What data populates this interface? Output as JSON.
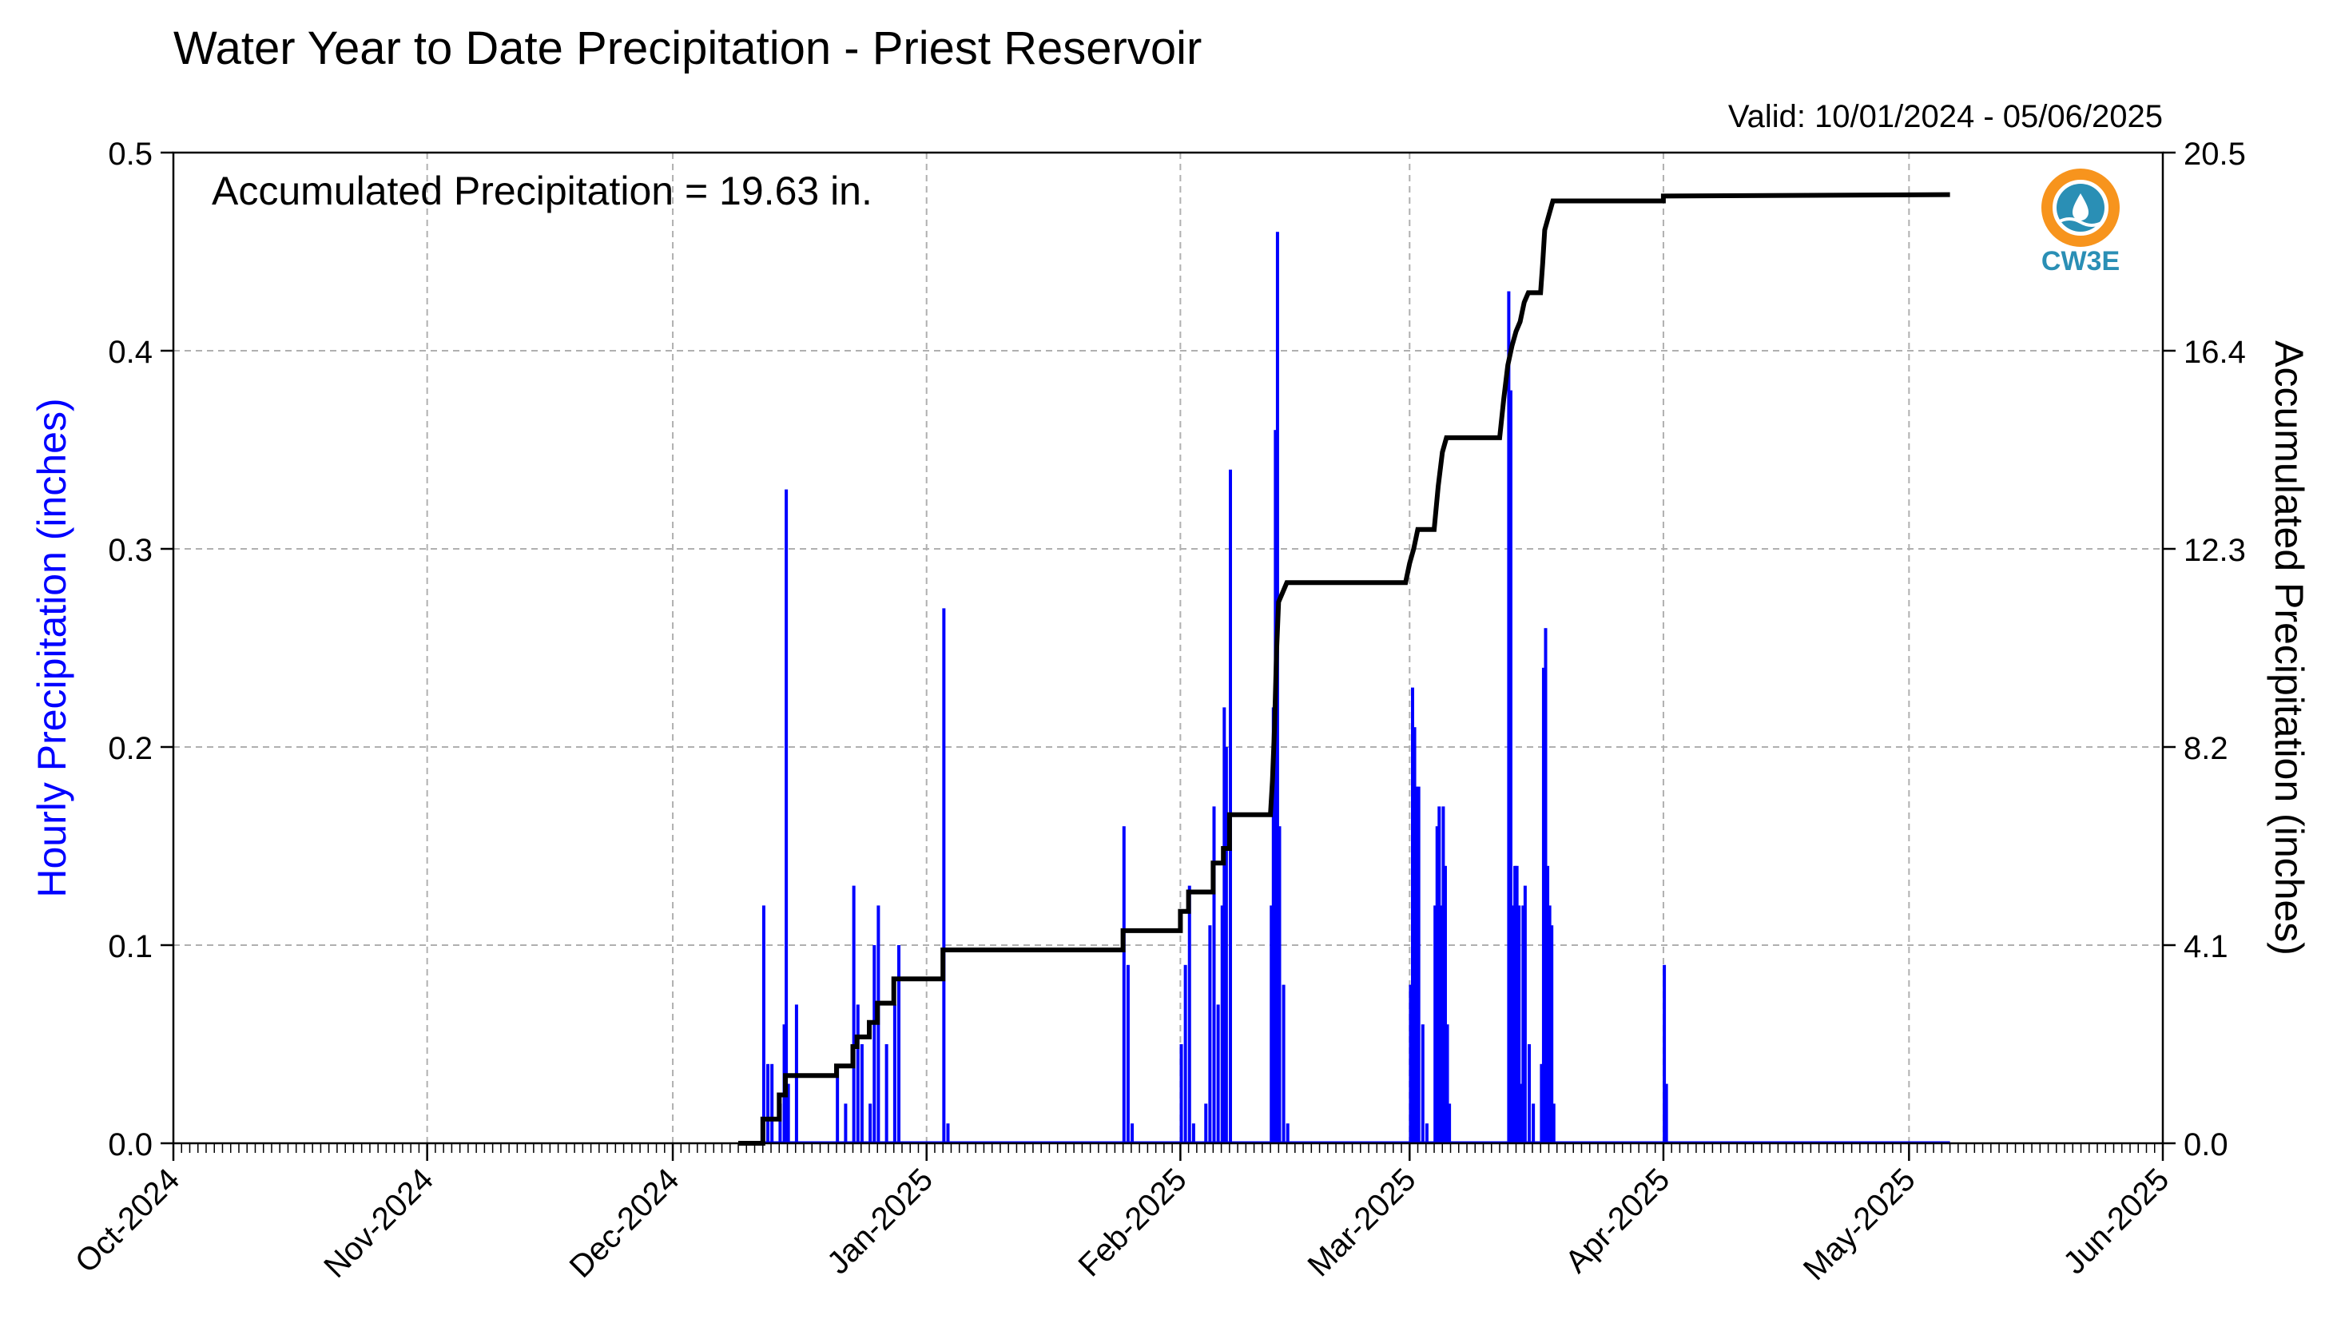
{
  "colors": {
    "hourly": "#0000ff",
    "accumulated": "#000000",
    "grid": "#b0b0b0",
    "logo_orange": "#f7941d",
    "logo_blue": "#2a8fb5"
  },
  "logo": {
    "text": "CW3E",
    "icon": "cw3e-water-drop-logo"
  },
  "chart_data": {
    "type": "bar",
    "title": "Water Year to Date Precipitation - Priest Reservoir",
    "subtitle": "Valid: 10/01/2024 - 05/06/2025",
    "annotation": "Accumulated Precipitation = 19.63 in.",
    "ylabel": "Hourly Precipitation (inches)",
    "y2label": "Accumulated Precipitation (inches)",
    "ylim": [
      0,
      0.5
    ],
    "y2lim": [
      0,
      20.5
    ],
    "xlim": [
      "2024-10-01",
      "2025-06-01"
    ],
    "yticks": [
      "0.0",
      "0.1",
      "0.2",
      "0.3",
      "0.4",
      "0.5"
    ],
    "y2ticks": [
      "0.0",
      "4.1",
      "8.2",
      "12.3",
      "16.4",
      "20.5"
    ],
    "xticks": [
      {
        "date": "2024-10-01",
        "label": "Oct-2024"
      },
      {
        "date": "2024-11-01",
        "label": "Nov-2024"
      },
      {
        "date": "2024-12-01",
        "label": "Dec-2024"
      },
      {
        "date": "2025-01-01",
        "label": "Jan-2025"
      },
      {
        "date": "2025-02-01",
        "label": "Feb-2025"
      },
      {
        "date": "2025-03-01",
        "label": "Mar-2025"
      },
      {
        "date": "2025-04-01",
        "label": "Apr-2025"
      },
      {
        "date": "2025-05-01",
        "label": "May-2025"
      },
      {
        "date": "2025-06-01",
        "label": "Jun-2025"
      }
    ],
    "grid": true,
    "series": [
      {
        "type": "bar",
        "axis": "left",
        "points": [
          [
            "2024-12-12",
            0.12
          ],
          [
            "2024-12-12T12",
            0.04
          ],
          [
            "2024-12-13",
            0.04
          ],
          [
            "2024-12-14",
            0.02
          ],
          [
            "2024-12-14T12",
            0.06
          ],
          [
            "2024-12-14T18",
            0.33
          ],
          [
            "2024-12-15",
            0.03
          ],
          [
            "2024-12-16",
            0.07
          ],
          [
            "2024-12-21",
            0.04
          ],
          [
            "2024-12-22",
            0.02
          ],
          [
            "2024-12-23",
            0.13
          ],
          [
            "2024-12-23T12",
            0.07
          ],
          [
            "2024-12-24",
            0.05
          ],
          [
            "2024-12-25",
            0.02
          ],
          [
            "2024-12-25T12",
            0.1
          ],
          [
            "2024-12-26",
            0.12
          ],
          [
            "2024-12-27",
            0.05
          ],
          [
            "2024-12-28",
            0.07
          ],
          [
            "2024-12-28T12",
            0.1
          ],
          [
            "2025-01-03",
            0.27
          ],
          [
            "2025-01-03T12",
            0.01
          ],
          [
            "2025-01-25",
            0.16
          ],
          [
            "2025-01-25T12",
            0.09
          ],
          [
            "2025-01-26",
            0.01
          ],
          [
            "2025-02-01",
            0.05
          ],
          [
            "2025-02-01T12",
            0.09
          ],
          [
            "2025-02-02",
            0.13
          ],
          [
            "2025-02-02T12",
            0.01
          ],
          [
            "2025-02-04",
            0.02
          ],
          [
            "2025-02-04T12",
            0.11
          ],
          [
            "2025-02-05",
            0.17
          ],
          [
            "2025-02-05T12",
            0.07
          ],
          [
            "2025-02-06",
            0.12
          ],
          [
            "2025-02-06T06",
            0.22
          ],
          [
            "2025-02-06T12",
            0.2
          ],
          [
            "2025-02-07",
            0.34
          ],
          [
            "2025-02-12",
            0.12
          ],
          [
            "2025-02-12T06",
            0.22
          ],
          [
            "2025-02-12T12",
            0.36
          ],
          [
            "2025-02-12T18",
            0.46
          ],
          [
            "2025-02-13",
            0.16
          ],
          [
            "2025-02-13T12",
            0.08
          ],
          [
            "2025-02-14",
            0.01
          ],
          [
            "2025-03-01",
            0.08
          ],
          [
            "2025-03-01T06",
            0.23
          ],
          [
            "2025-03-01T12",
            0.21
          ],
          [
            "2025-03-01T18",
            0.18
          ],
          [
            "2025-03-02",
            0.18
          ],
          [
            "2025-03-02T12",
            0.06
          ],
          [
            "2025-03-03",
            0.01
          ],
          [
            "2025-03-04",
            0.12
          ],
          [
            "2025-03-04T06",
            0.16
          ],
          [
            "2025-03-04T12",
            0.17
          ],
          [
            "2025-03-04T18",
            0.12
          ],
          [
            "2025-03-05",
            0.17
          ],
          [
            "2025-03-05T06",
            0.14
          ],
          [
            "2025-03-05T12",
            0.06
          ],
          [
            "2025-03-05T18",
            0.02
          ],
          [
            "2025-03-13",
            0.43
          ],
          [
            "2025-03-13T06",
            0.38
          ],
          [
            "2025-03-13T12",
            0.12
          ],
          [
            "2025-03-13T18",
            0.14
          ],
          [
            "2025-03-14",
            0.14
          ],
          [
            "2025-03-14T06",
            0.12
          ],
          [
            "2025-03-14T12",
            0.03
          ],
          [
            "2025-03-14T18",
            0.12
          ],
          [
            "2025-03-15",
            0.13
          ],
          [
            "2025-03-15T12",
            0.05
          ],
          [
            "2025-03-16",
            0.02
          ],
          [
            "2025-03-17",
            0.04
          ],
          [
            "2025-03-17T06",
            0.24
          ],
          [
            "2025-03-17T12",
            0.26
          ],
          [
            "2025-03-17T18",
            0.14
          ],
          [
            "2025-03-18",
            0.12
          ],
          [
            "2025-03-18T06",
            0.11
          ],
          [
            "2025-03-18T12",
            0.02
          ],
          [
            "2025-04-01",
            0.09
          ],
          [
            "2025-04-01T06",
            0.03
          ]
        ]
      },
      {
        "type": "line",
        "axis": "right",
        "points": [
          [
            "2024-12-09",
            0.0
          ],
          [
            "2024-12-12",
            0.0
          ],
          [
            "2024-12-12",
            0.5
          ],
          [
            "2024-12-14",
            0.5
          ],
          [
            "2024-12-14",
            1.0
          ],
          [
            "2024-12-14T18",
            1.0
          ],
          [
            "2024-12-14T18",
            1.4
          ],
          [
            "2024-12-16",
            1.4
          ],
          [
            "2024-12-16",
            1.4
          ],
          [
            "2024-12-16T12",
            1.4
          ],
          [
            "2024-12-16T12",
            1.4
          ],
          [
            "2024-12-17",
            1.4
          ],
          [
            "2024-12-17",
            1.4
          ],
          [
            "2024-12-17",
            1.4
          ],
          [
            "2024-12-17",
            1.4
          ],
          [
            "2024-12-21",
            1.4
          ],
          [
            "2024-12-21",
            1.6
          ],
          [
            "2024-12-23",
            1.6
          ],
          [
            "2024-12-23",
            2.0
          ],
          [
            "2024-12-23T12",
            2.0
          ],
          [
            "2024-12-23T12",
            2.2
          ],
          [
            "2024-12-25",
            2.2
          ],
          [
            "2024-12-25",
            2.5
          ],
          [
            "2024-12-26",
            2.5
          ],
          [
            "2024-12-26",
            2.9
          ],
          [
            "2024-12-28",
            2.9
          ],
          [
            "2024-12-28",
            3.4
          ],
          [
            "2025-01-03",
            3.4
          ],
          [
            "2025-01-03",
            4.0
          ],
          [
            "2025-01-25",
            4.0
          ],
          [
            "2025-01-25",
            4.4
          ],
          [
            "2025-02-01",
            4.4
          ],
          [
            "2025-02-01",
            4.8
          ],
          [
            "2025-02-02",
            4.8
          ],
          [
            "2025-02-02",
            5.2
          ],
          [
            "2025-02-05",
            5.2
          ],
          [
            "2025-02-05",
            5.8
          ],
          [
            "2025-02-06T06",
            5.8
          ],
          [
            "2025-02-06T06",
            6.1
          ],
          [
            "2025-02-07",
            6.1
          ],
          [
            "2025-02-07",
            6.8
          ],
          [
            "2025-02-12",
            6.8
          ],
          [
            "2025-02-12T06",
            7.5
          ],
          [
            "2025-02-12T12",
            8.6
          ],
          [
            "2025-02-12T18",
            10.2
          ],
          [
            "2025-02-13",
            11.2
          ],
          [
            "2025-02-14",
            11.6
          ],
          [
            "2025-02-28T12",
            11.6
          ],
          [
            "2025-03-01",
            12.0
          ],
          [
            "2025-03-01T12",
            12.3
          ],
          [
            "2025-03-02",
            12.7
          ],
          [
            "2025-03-04",
            12.7
          ],
          [
            "2025-03-04T12",
            13.6
          ],
          [
            "2025-03-05",
            14.3
          ],
          [
            "2025-03-05T12",
            14.6
          ],
          [
            "2025-03-12",
            14.6
          ],
          [
            "2025-03-12T12",
            15.4
          ],
          [
            "2025-03-13",
            16.1
          ],
          [
            "2025-03-13T12",
            16.5
          ],
          [
            "2025-03-14",
            16.8
          ],
          [
            "2025-03-14T12",
            17.0
          ],
          [
            "2025-03-15",
            17.4
          ],
          [
            "2025-03-15T12",
            17.6
          ],
          [
            "2025-03-17",
            17.6
          ],
          [
            "2025-03-17T06",
            18.2
          ],
          [
            "2025-03-17T12",
            18.9
          ],
          [
            "2025-03-18",
            19.2
          ],
          [
            "2025-03-18T12",
            19.5
          ],
          [
            "2025-04-01",
            19.5
          ],
          [
            "2025-04-01",
            19.6
          ],
          [
            "2025-05-06",
            19.63
          ]
        ]
      }
    ]
  }
}
